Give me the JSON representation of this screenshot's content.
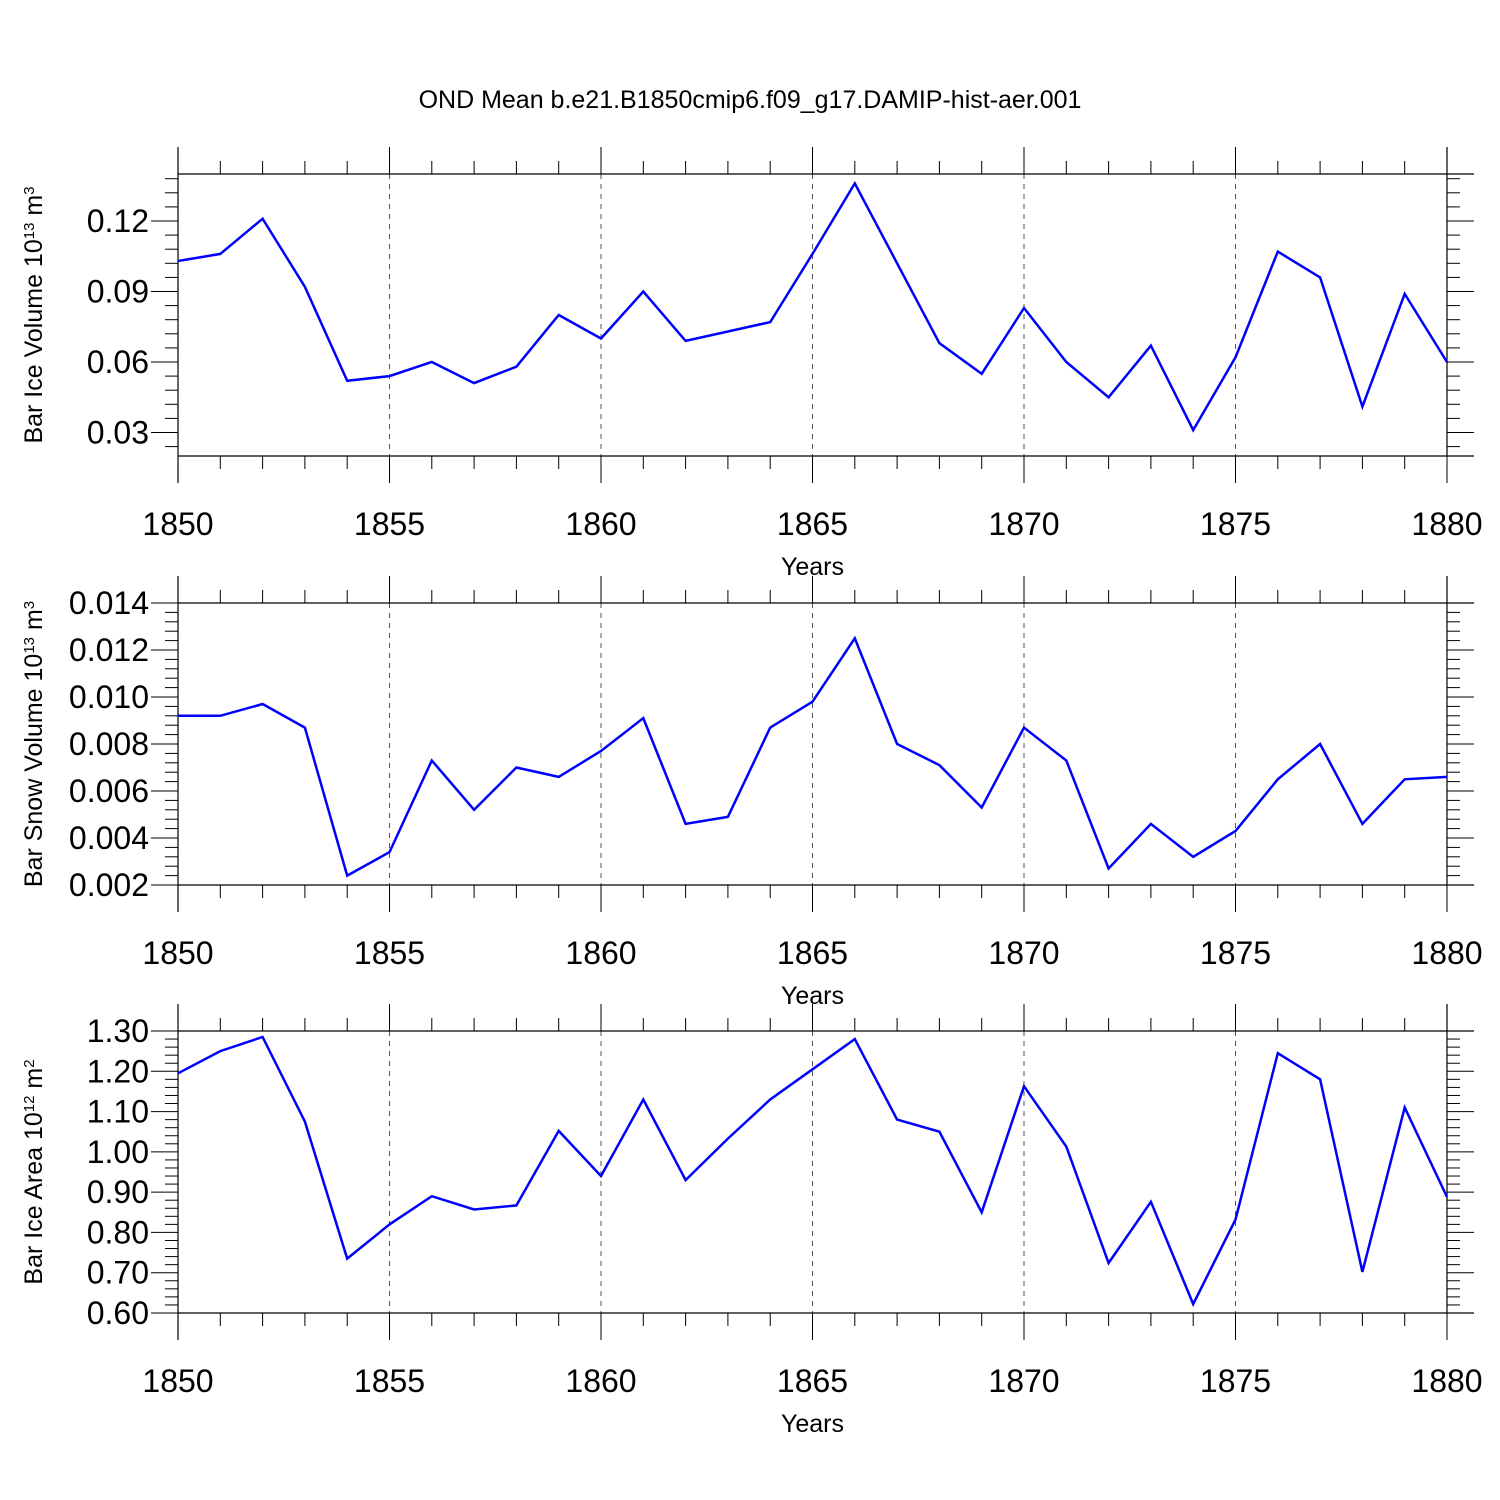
{
  "title": "OND Mean b.e21.B1850cmip6.f09_g17.DAMIP-hist-aer.001",
  "line_color": "#0000ff",
  "chart_data": [
    {
      "type": "line",
      "name": "bar-ice-volume",
      "ylabel": {
        "main": "Bar Ice Volume 10",
        "exp": "13",
        "unit": " m",
        "unit_exp": "3"
      },
      "xlabel": "Years",
      "xlim": [
        1850,
        1880
      ],
      "ylim": [
        0.02,
        0.14
      ],
      "yticks": [
        0.03,
        0.06,
        0.09,
        0.12
      ],
      "ytick_labels": [
        "0.03",
        "0.06",
        "0.09",
        "0.12"
      ],
      "xticks": [
        1850,
        1855,
        1860,
        1865,
        1870,
        1875,
        1880
      ],
      "xtick_labels": [
        "1850",
        "1855",
        "1860",
        "1865",
        "1870",
        "1875",
        "1880"
      ],
      "x": [
        1850,
        1851,
        1852,
        1853,
        1854,
        1855,
        1856,
        1857,
        1858,
        1859,
        1860,
        1861,
        1862,
        1863,
        1864,
        1865,
        1866,
        1867,
        1868,
        1869,
        1870,
        1871,
        1872,
        1873,
        1874,
        1875,
        1876,
        1877,
        1878,
        1879,
        1880
      ],
      "values": [
        0.103,
        0.106,
        0.121,
        0.092,
        0.052,
        0.054,
        0.06,
        0.051,
        0.058,
        0.08,
        0.07,
        0.09,
        0.069,
        0.073,
        0.077,
        0.106,
        0.136,
        0.102,
        0.068,
        0.055,
        0.083,
        0.06,
        0.045,
        0.067,
        0.031,
        0.062,
        0.107,
        0.096,
        0.041,
        0.089,
        0.06
      ]
    },
    {
      "type": "line",
      "name": "bar-snow-volume",
      "ylabel": {
        "main": "Bar Snow Volume 10",
        "exp": "13",
        "unit": " m",
        "unit_exp": "3"
      },
      "xlabel": "Years",
      "xlim": [
        1850,
        1880
      ],
      "ylim": [
        0.002,
        0.014
      ],
      "yticks": [
        0.002,
        0.004,
        0.006,
        0.008,
        0.01,
        0.012,
        0.014
      ],
      "ytick_labels": [
        "0.002",
        "0.004",
        "0.006",
        "0.008",
        "0.010",
        "0.012",
        "0.014"
      ],
      "xticks": [
        1850,
        1855,
        1860,
        1865,
        1870,
        1875,
        1880
      ],
      "xtick_labels": [
        "1850",
        "1855",
        "1860",
        "1865",
        "1870",
        "1875",
        "1880"
      ],
      "x": [
        1850,
        1851,
        1852,
        1853,
        1854,
        1855,
        1856,
        1857,
        1858,
        1859,
        1860,
        1861,
        1862,
        1863,
        1864,
        1865,
        1866,
        1867,
        1868,
        1869,
        1870,
        1871,
        1872,
        1873,
        1874,
        1875,
        1876,
        1877,
        1878,
        1879,
        1880
      ],
      "values": [
        0.0092,
        0.0092,
        0.0097,
        0.0087,
        0.0024,
        0.0034,
        0.0073,
        0.0052,
        0.007,
        0.0066,
        0.0077,
        0.0091,
        0.0046,
        0.0049,
        0.0087,
        0.0098,
        0.0125,
        0.008,
        0.0071,
        0.0053,
        0.0087,
        0.0073,
        0.0027,
        0.0046,
        0.0032,
        0.0043,
        0.0065,
        0.008,
        0.0046,
        0.0065,
        0.0066
      ]
    },
    {
      "type": "line",
      "name": "bar-ice-area",
      "ylabel": {
        "main": "Bar Ice Area 10",
        "exp": "12",
        "unit": " m",
        "unit_exp": "2"
      },
      "xlabel": "Years",
      "xlim": [
        1850,
        1880
      ],
      "ylim": [
        0.6,
        1.3
      ],
      "yticks": [
        0.6,
        0.7,
        0.8,
        0.9,
        1.0,
        1.1,
        1.2,
        1.3
      ],
      "ytick_labels": [
        "0.60",
        "0.70",
        "0.80",
        "0.90",
        "1.00",
        "1.10",
        "1.20",
        "1.30"
      ],
      "xticks": [
        1850,
        1855,
        1860,
        1865,
        1870,
        1875,
        1880
      ],
      "xtick_labels": [
        "1850",
        "1855",
        "1860",
        "1865",
        "1870",
        "1875",
        "1880"
      ],
      "x": [
        1850,
        1851,
        1852,
        1853,
        1854,
        1855,
        1856,
        1857,
        1858,
        1859,
        1860,
        1861,
        1862,
        1863,
        1864,
        1865,
        1866,
        1867,
        1868,
        1869,
        1870,
        1871,
        1872,
        1873,
        1874,
        1875,
        1876,
        1877,
        1878,
        1879,
        1880
      ],
      "values": [
        1.195,
        1.25,
        1.285,
        1.075,
        0.735,
        0.82,
        0.89,
        0.857,
        0.867,
        1.052,
        0.94,
        1.13,
        0.93,
        1.033,
        1.13,
        1.205,
        1.28,
        1.08,
        1.05,
        0.85,
        1.163,
        1.013,
        0.724,
        0.876,
        0.622,
        0.832,
        1.245,
        1.18,
        0.702,
        1.11,
        0.888
      ]
    }
  ]
}
